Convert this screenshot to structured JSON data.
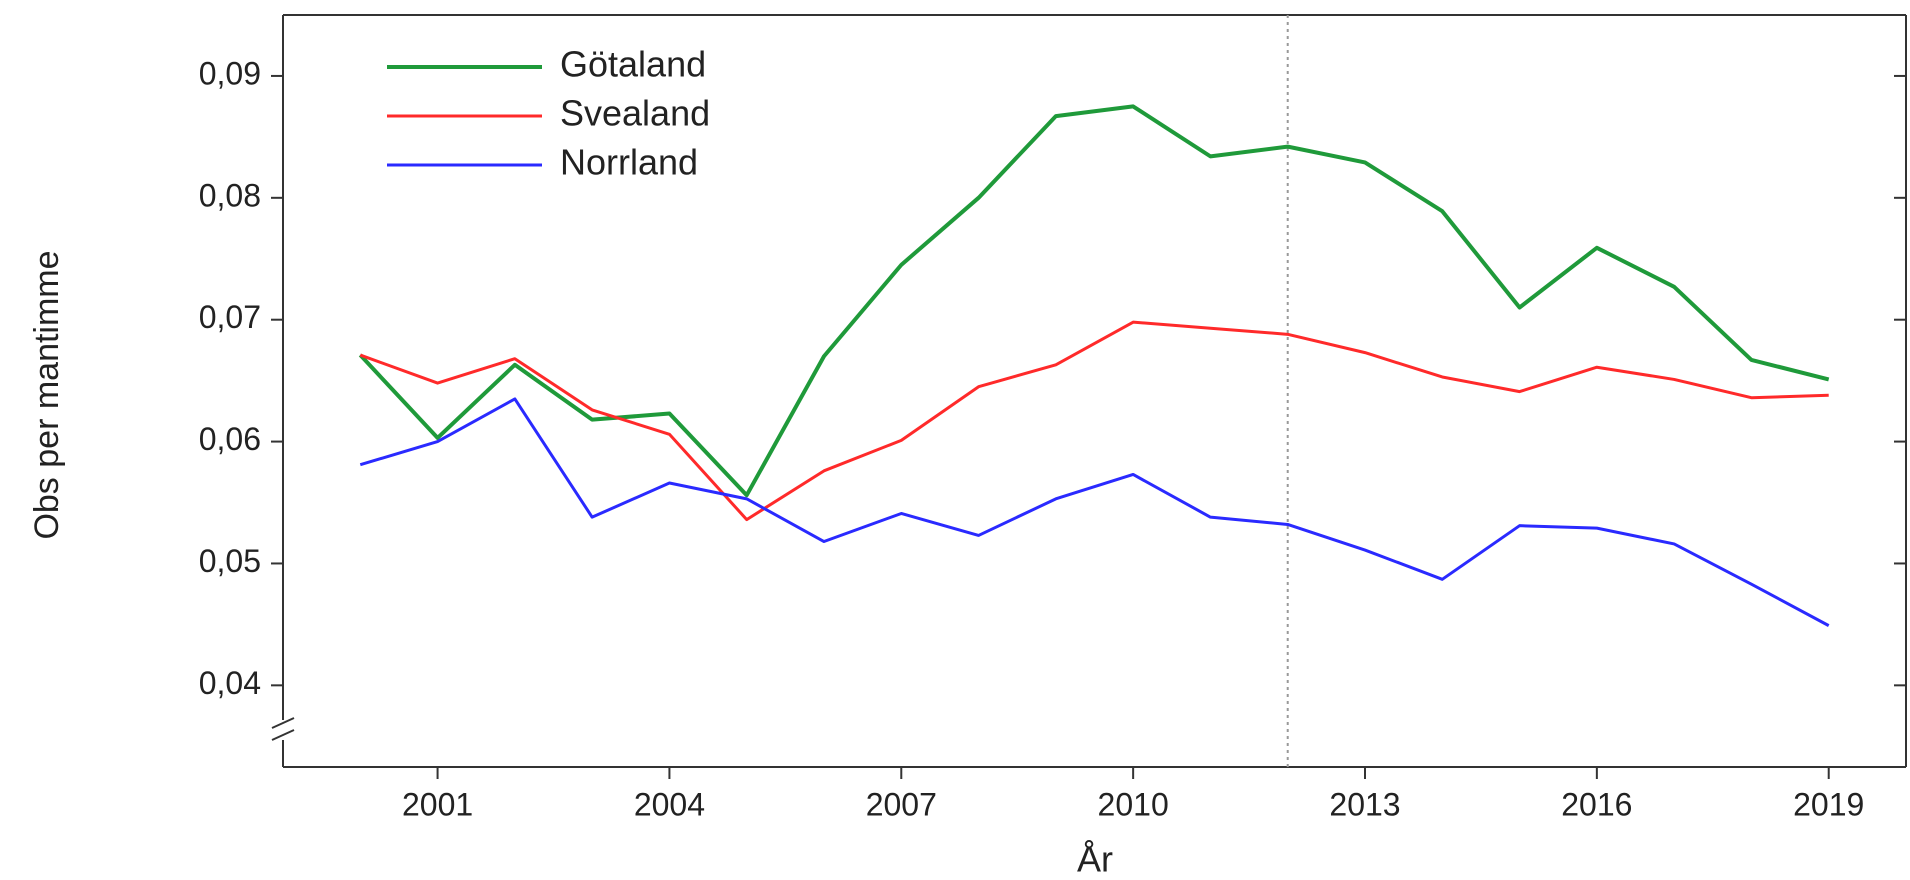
{
  "chart_data": {
    "type": "line",
    "x_label": "År",
    "y_label": "Obs per mantimme",
    "x": [
      2000,
      2001,
      2002,
      2003,
      2004,
      2005,
      2006,
      2007,
      2008,
      2009,
      2010,
      2011,
      2012,
      2013,
      2014,
      2015,
      2016,
      2017,
      2018,
      2019
    ],
    "series": [
      {
        "name": "Götaland",
        "color": "#1f9a3a",
        "values": [
          0.0671,
          0.0603,
          0.0663,
          0.0618,
          0.0623,
          0.0556,
          0.067,
          0.0745,
          0.08,
          0.0867,
          0.0875,
          0.0834,
          0.0842,
          0.0829,
          0.0789,
          0.071,
          0.0759,
          0.0727,
          0.0667,
          0.0651
        ]
      },
      {
        "name": "Svealand",
        "color": "#ff2a2a",
        "values": [
          0.0671,
          0.0648,
          0.0668,
          0.0626,
          0.0606,
          0.0536,
          0.0576,
          0.0601,
          0.0645,
          0.0663,
          0.0698,
          0.0693,
          0.0688,
          0.0673,
          0.0653,
          0.0641,
          0.0661,
          0.0651,
          0.0636,
          0.0638
        ]
      },
      {
        "name": "Norrland",
        "color": "#2a2aff",
        "values": [
          0.0581,
          0.06,
          0.0635,
          0.0538,
          0.0566,
          0.0553,
          0.0518,
          0.0541,
          0.0523,
          0.0553,
          0.0573,
          0.0538,
          0.0532,
          0.0511,
          0.0487,
          0.0531,
          0.0529,
          0.0516,
          0.0483,
          0.0449
        ]
      }
    ],
    "xlim": [
      1999,
      2020
    ],
    "xticks": [
      2001,
      2004,
      2007,
      2010,
      2013,
      2016,
      2019
    ],
    "ylim": [
      0.0333,
      0.095
    ],
    "yticks": [
      {
        "value": 0.04,
        "label": "0,04"
      },
      {
        "value": 0.05,
        "label": "0,05"
      },
      {
        "value": 0.06,
        "label": "0,06"
      },
      {
        "value": 0.07,
        "label": "0,07"
      },
      {
        "value": 0.08,
        "label": "0,08"
      },
      {
        "value": 0.09,
        "label": "0,09"
      }
    ],
    "reference_line_x": 2012,
    "legend": "top-left"
  }
}
